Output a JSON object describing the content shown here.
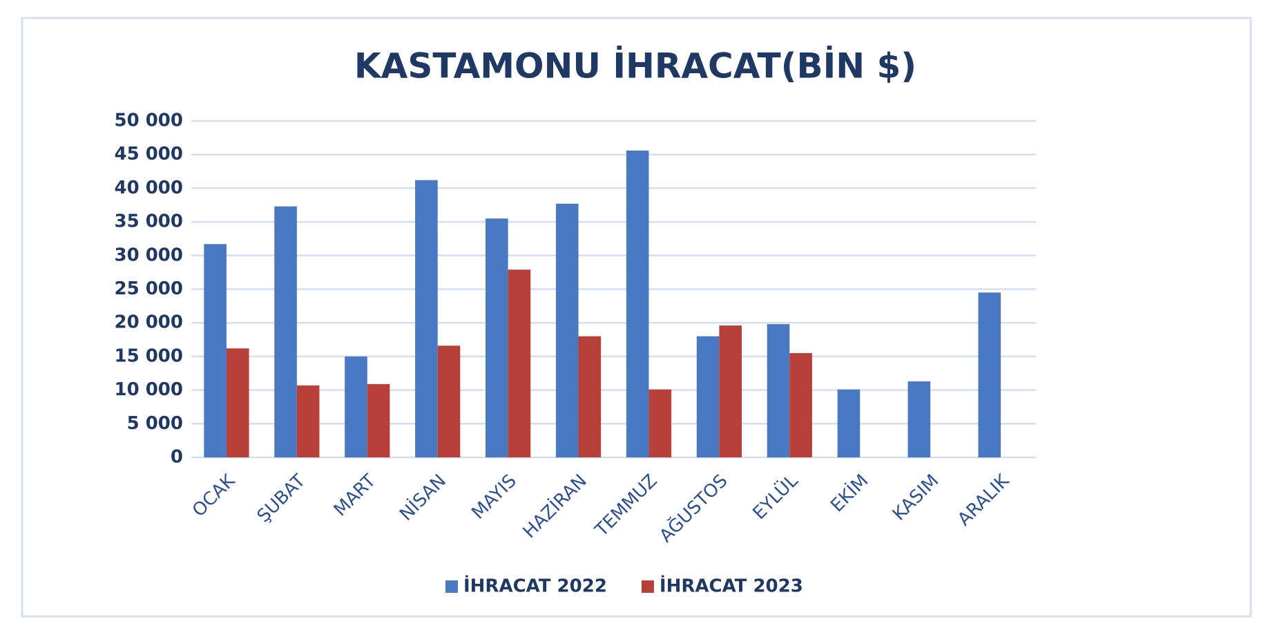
{
  "chart_data": {
    "type": "bar",
    "title": "KASTAMONU İHRACAT(BİN $)",
    "categories": [
      "OCAK",
      "ŞUBAT",
      "MART",
      "NİSAN",
      "MAYIS",
      "HAZİRAN",
      "TEMMUZ",
      "AĞUSTOS",
      "EYLÜL",
      "EKİM",
      "KASIM",
      "ARALIK"
    ],
    "series": [
      {
        "name": "İHRACAT 2022",
        "color": "#4a78c2",
        "values": [
          31700,
          37300,
          15000,
          41200,
          35500,
          37700,
          45600,
          18000,
          19800,
          10100,
          11300,
          24500
        ]
      },
      {
        "name": "İHRACAT 2023",
        "color": "#b8403b",
        "values": [
          16200,
          10700,
          10900,
          16600,
          27900,
          18000,
          10100,
          19600,
          15500,
          null,
          null,
          null
        ]
      }
    ],
    "ylim": [
      0,
      50000
    ],
    "yticks": [
      0,
      {
        "value": 5000,
        "label": "5 000"
      },
      {
        "value": 10000,
        "label": "10 000"
      },
      {
        "value": 15000,
        "label": "15 000"
      },
      {
        "value": 20000,
        "label": "20 000"
      },
      {
        "value": 25000,
        "label": "25 000"
      },
      {
        "value": 30000,
        "label": "30 000"
      },
      {
        "value": 35000,
        "label": "35 000"
      },
      {
        "value": 40000,
        "label": "40 000"
      },
      {
        "value": 45000,
        "label": "45 000"
      },
      {
        "value": 50000,
        "label": "50 000"
      }
    ],
    "grid": true,
    "legend": "bottom"
  }
}
